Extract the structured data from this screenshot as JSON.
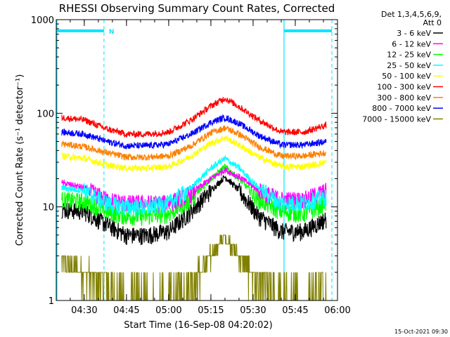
{
  "chart_data": {
    "type": "line",
    "title": "RHESSI Observing Summary Count Rates, Corrected",
    "xlabel": "Start Time (16-Sep-08 04:20:02)",
    "ylabel": "Corrected Count Rate (s⁻¹ detector⁻¹)",
    "y_scale": "log",
    "ylim": [
      1,
      1000
    ],
    "y_ticks": [
      {
        "value": 1,
        "label": "1"
      },
      {
        "value": 10,
        "label": "10"
      },
      {
        "value": 100,
        "label": "100"
      },
      {
        "value": 1000,
        "label": "1000"
      }
    ],
    "xlim": [
      "04:20:02",
      "06:00:00"
    ],
    "x_ticks": [
      {
        "value": "04:30",
        "label": "04:30"
      },
      {
        "value": "04:45",
        "label": "04:45"
      },
      {
        "value": "05:00",
        "label": "05:00"
      },
      {
        "value": "05:15",
        "label": "05:15"
      },
      {
        "value": "05:30",
        "label": "05:30"
      },
      {
        "value": "05:45",
        "label": "05:45"
      },
      {
        "value": "06:00",
        "label": "06:00"
      }
    ],
    "x": [
      "04:22",
      "04:30",
      "04:38",
      "04:45",
      "04:52",
      "05:00",
      "05:08",
      "05:15",
      "05:20",
      "05:25",
      "05:32",
      "05:40",
      "05:48",
      "05:56"
    ],
    "legend_header": [
      "Det 1,3,4,5,6,9,",
      "Att 0"
    ],
    "legend_position": "outside-right",
    "series": [
      {
        "name": "3 - 6 keV",
        "color": "#000000",
        "values": [
          9.5,
          9,
          6.5,
          5,
          5,
          5.5,
          9,
          15,
          21,
          15,
          8,
          5.5,
          5.5,
          7.5
        ]
      },
      {
        "name": "6 - 12 keV",
        "color": "#ff00ff",
        "values": [
          18,
          16,
          12,
          11,
          11,
          11,
          14,
          20,
          25,
          21,
          15,
          12,
          12,
          15
        ]
      },
      {
        "name": "12 - 25 keV",
        "color": "#00ff00",
        "values": [
          12,
          11.5,
          9,
          8,
          8,
          8.5,
          12,
          20,
          27,
          20,
          12,
          9,
          8.5,
          11
        ]
      },
      {
        "name": "25 - 50 keV",
        "color": "#00ffff",
        "values": [
          16,
          15,
          11,
          10,
          10,
          11,
          16,
          26,
          33,
          26,
          16,
          11,
          11,
          13
        ]
      },
      {
        "name": "50 - 100 keV",
        "color": "#ffff00",
        "values": [
          35,
          33,
          28,
          26,
          26,
          27,
          35,
          48,
          55,
          46,
          34,
          27,
          27,
          30
        ]
      },
      {
        "name": "100 - 300 keV",
        "color": "#ff0000",
        "values": [
          90,
          85,
          68,
          60,
          60,
          63,
          85,
          120,
          145,
          118,
          85,
          63,
          63,
          75
        ]
      },
      {
        "name": "300 - 800 keV",
        "color": "#ff8000",
        "values": [
          47,
          44,
          38,
          34,
          34,
          35,
          45,
          62,
          70,
          60,
          44,
          35,
          35,
          38
        ]
      },
      {
        "name": "800 - 7000 keV",
        "color": "#0000ff",
        "values": [
          63,
          60,
          50,
          45,
          45,
          47,
          60,
          80,
          90,
          78,
          58,
          46,
          46,
          50
        ]
      },
      {
        "name": "7000 - 15000 keV",
        "color": "#808000",
        "values": [
          2.5,
          2,
          1.5,
          1,
          1,
          1,
          1.5,
          3,
          5,
          3,
          1.5,
          1,
          1,
          1.5
        ]
      }
    ],
    "annotations": {
      "flag_label": "N",
      "flag_bars": [
        [
          "04:20:02",
          "04:37"
        ],
        [
          "05:41",
          "05:58"
        ]
      ],
      "flag_value": 760,
      "vertical_lines_solid": [
        "04:20:02",
        "05:41"
      ],
      "vertical_lines_dashed": [
        "04:37",
        "05:58"
      ]
    },
    "colors": {
      "flag": "#00e5ff"
    }
  },
  "footer": {
    "timestamp": "15-Oct-2021 09:30"
  }
}
